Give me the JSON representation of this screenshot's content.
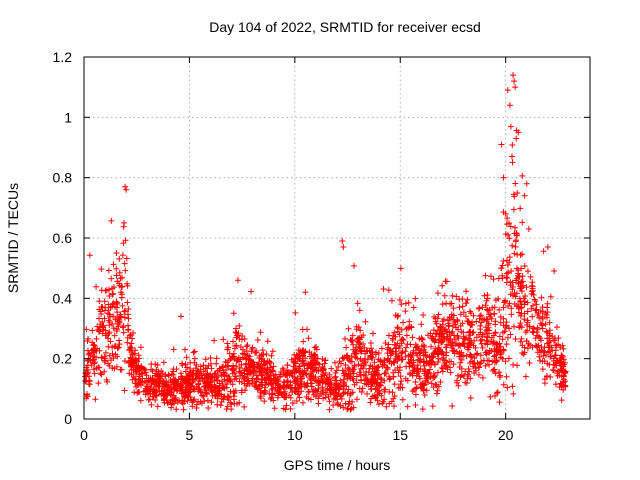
{
  "chart_data": {
    "type": "scatter",
    "title": "Day 104 of 2022, SRMTID for receiver ecsd",
    "xlabel": "GPS time / hours",
    "ylabel": "SRMTID / TECUs",
    "xlim": [
      0,
      24
    ],
    "ylim": [
      0,
      1.2
    ],
    "x_ticks": [
      0,
      5,
      10,
      15,
      20
    ],
    "x_tick_labels": [
      "0",
      "5",
      "10",
      "15",
      "20"
    ],
    "y_ticks": [
      0,
      0.2,
      0.4,
      0.6,
      0.8,
      1.0,
      1.2
    ],
    "y_tick_labels": [
      "0",
      "0.2",
      "0.4",
      "0.6",
      "0.8",
      "1",
      "1.2"
    ],
    "grid": true,
    "legend": "none",
    "marker": "plus",
    "color": "#ff0000",
    "series": [
      {
        "name": "SRMTID",
        "profile_hours": [
          0,
          0.3,
          0.6,
          0.9,
          1.2,
          1.5,
          1.8,
          2.0,
          2.2,
          2.5,
          3.0,
          3.5,
          4.0,
          4.5,
          5.0,
          5.5,
          6.0,
          6.5,
          7.0,
          7.3,
          7.6,
          8.0,
          8.5,
          9.0,
          9.5,
          10.0,
          10.5,
          11.0,
          11.5,
          12.0,
          12.3,
          12.6,
          13.0,
          13.5,
          14.0,
          14.5,
          15.0,
          15.5,
          16.0,
          16.5,
          17.0,
          17.5,
          18.0,
          18.5,
          19.0,
          19.3,
          19.6,
          19.9,
          20.2,
          20.4,
          20.6,
          20.8,
          21.0,
          21.3,
          21.6,
          22.0,
          22.3,
          22.6,
          22.8
        ],
        "profile_mid": [
          0.12,
          0.18,
          0.25,
          0.32,
          0.3,
          0.32,
          0.38,
          0.45,
          0.2,
          0.15,
          0.12,
          0.11,
          0.1,
          0.11,
          0.12,
          0.11,
          0.12,
          0.1,
          0.14,
          0.2,
          0.18,
          0.16,
          0.14,
          0.12,
          0.1,
          0.14,
          0.17,
          0.15,
          0.12,
          0.1,
          0.12,
          0.15,
          0.2,
          0.15,
          0.13,
          0.18,
          0.22,
          0.2,
          0.17,
          0.2,
          0.25,
          0.28,
          0.25,
          0.22,
          0.28,
          0.32,
          0.25,
          0.3,
          0.45,
          0.55,
          0.45,
          0.4,
          0.35,
          0.32,
          0.28,
          0.25,
          0.22,
          0.18,
          0.15
        ],
        "profile_spread": [
          0.05,
          0.07,
          0.1,
          0.13,
          0.11,
          0.12,
          0.14,
          0.15,
          0.06,
          0.05,
          0.04,
          0.04,
          0.04,
          0.04,
          0.05,
          0.05,
          0.05,
          0.05,
          0.08,
          0.11,
          0.08,
          0.07,
          0.06,
          0.05,
          0.05,
          0.07,
          0.08,
          0.06,
          0.05,
          0.04,
          0.07,
          0.1,
          0.1,
          0.07,
          0.06,
          0.1,
          0.11,
          0.1,
          0.07,
          0.09,
          0.1,
          0.1,
          0.09,
          0.08,
          0.1,
          0.12,
          0.12,
          0.16,
          0.25,
          0.3,
          0.2,
          0.15,
          0.12,
          0.1,
          0.1,
          0.1,
          0.08,
          0.06,
          0.04
        ],
        "peaks": [
          {
            "x": 1.95,
            "y": 0.77
          },
          {
            "x": 2.0,
            "y": 0.76
          },
          {
            "x": 1.9,
            "y": 0.65
          },
          {
            "x": 12.25,
            "y": 0.59
          },
          {
            "x": 12.3,
            "y": 0.57
          },
          {
            "x": 7.3,
            "y": 0.46
          },
          {
            "x": 4.6,
            "y": 0.34
          },
          {
            "x": 10.5,
            "y": 0.42
          },
          {
            "x": 19.8,
            "y": 0.91
          },
          {
            "x": 20.1,
            "y": 1.09
          },
          {
            "x": 20.2,
            "y": 1.04
          },
          {
            "x": 20.35,
            "y": 1.14
          },
          {
            "x": 20.4,
            "y": 1.12
          },
          {
            "x": 20.45,
            "y": 1.1
          },
          {
            "x": 20.3,
            "y": 0.87
          },
          {
            "x": 20.5,
            "y": 0.93
          },
          {
            "x": 20.6,
            "y": 0.95
          },
          {
            "x": 21.0,
            "y": 0.78
          },
          {
            "x": 20.9,
            "y": 0.74
          },
          {
            "x": 21.1,
            "y": 0.63
          },
          {
            "x": 19.9,
            "y": 0.8
          },
          {
            "x": 20.0,
            "y": 0.68
          },
          {
            "x": 22.0,
            "y": 0.57
          }
        ]
      }
    ]
  }
}
